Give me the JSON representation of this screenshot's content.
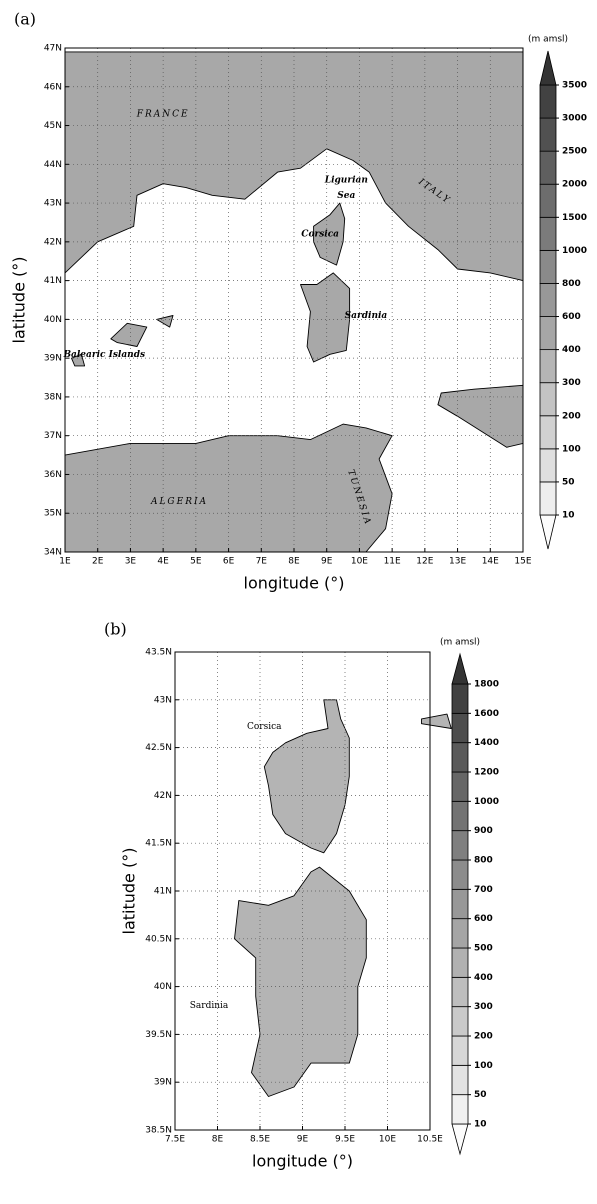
{
  "chart_data": [
    {
      "type": "map",
      "panel_label": "(a)",
      "x_label": "longitude (°)",
      "y_label": "latitude (°)",
      "xlim": [
        1,
        15
      ],
      "ylim": [
        34,
        47
      ],
      "xticks": [
        {
          "value": 1,
          "label": "1E"
        },
        {
          "value": 2,
          "label": "2E"
        },
        {
          "value": 3,
          "label": "3E"
        },
        {
          "value": 4,
          "label": "4E"
        },
        {
          "value": 5,
          "label": "5E"
        },
        {
          "value": 6,
          "label": "6E"
        },
        {
          "value": 7,
          "label": "7E"
        },
        {
          "value": 8,
          "label": "8E"
        },
        {
          "value": 9,
          "label": "9E"
        },
        {
          "value": 10,
          "label": "10E"
        },
        {
          "value": 11,
          "label": "11E"
        },
        {
          "value": 12,
          "label": "12E"
        },
        {
          "value": 13,
          "label": "13E"
        },
        {
          "value": 14,
          "label": "14E"
        },
        {
          "value": 15,
          "label": "15E"
        }
      ],
      "yticks": [
        {
          "value": 34,
          "label": "34N"
        },
        {
          "value": 35,
          "label": "35N"
        },
        {
          "value": 36,
          "label": "36N"
        },
        {
          "value": 37,
          "label": "37N"
        },
        {
          "value": 38,
          "label": "38N"
        },
        {
          "value": 39,
          "label": "39N"
        },
        {
          "value": 40,
          "label": "40N"
        },
        {
          "value": 41,
          "label": "41N"
        },
        {
          "value": 42,
          "label": "42N"
        },
        {
          "value": 43,
          "label": "43N"
        },
        {
          "value": 44,
          "label": "44N"
        },
        {
          "value": 45,
          "label": "45N"
        },
        {
          "value": 46,
          "label": "46N"
        },
        {
          "value": 47,
          "label": "47N"
        }
      ],
      "grid": true,
      "colorbar_label": "(m amsl)",
      "colorbar_levels": [
        10,
        50,
        100,
        200,
        300,
        400,
        600,
        800,
        1000,
        1500,
        2000,
        2500,
        3000,
        3500
      ],
      "annotations": [
        "FRANCE",
        "ITALY",
        "Ligurian",
        "Sea",
        "Corsica",
        "Sardinia",
        "Balearic Islands",
        "ALGERIA",
        "TUNESIA"
      ]
    },
    {
      "type": "map",
      "panel_label": "(b)",
      "x_label": "longitude (°)",
      "y_label": "latitude (°)",
      "xlim": [
        7.5,
        10.5
      ],
      "ylim": [
        38.5,
        43.5
      ],
      "xticks": [
        {
          "value": 7.5,
          "label": "7.5E"
        },
        {
          "value": 8,
          "label": "8E"
        },
        {
          "value": 8.5,
          "label": "8.5E"
        },
        {
          "value": 9,
          "label": "9E"
        },
        {
          "value": 9.5,
          "label": "9.5E"
        },
        {
          "value": 10,
          "label": "10E"
        },
        {
          "value": 10.5,
          "label": "10.5E"
        }
      ],
      "yticks": [
        {
          "value": 38.5,
          "label": "38.5N"
        },
        {
          "value": 39,
          "label": "39N"
        },
        {
          "value": 39.5,
          "label": "39.5N"
        },
        {
          "value": 40,
          "label": "40N"
        },
        {
          "value": 40.5,
          "label": "40.5N"
        },
        {
          "value": 41,
          "label": "41N"
        },
        {
          "value": 41.5,
          "label": "41.5N"
        },
        {
          "value": 42,
          "label": "42N"
        },
        {
          "value": 42.5,
          "label": "42.5N"
        },
        {
          "value": 43,
          "label": "43N"
        },
        {
          "value": 43.5,
          "label": "43.5N"
        }
      ],
      "grid": true,
      "colorbar_label": "(m amsl)",
      "colorbar_levels": [
        10,
        50,
        100,
        200,
        300,
        400,
        500,
        600,
        700,
        800,
        900,
        1000,
        1200,
        1400,
        1600,
        1800
      ],
      "annotations": [
        "Corsica",
        "Sardinia"
      ]
    }
  ]
}
